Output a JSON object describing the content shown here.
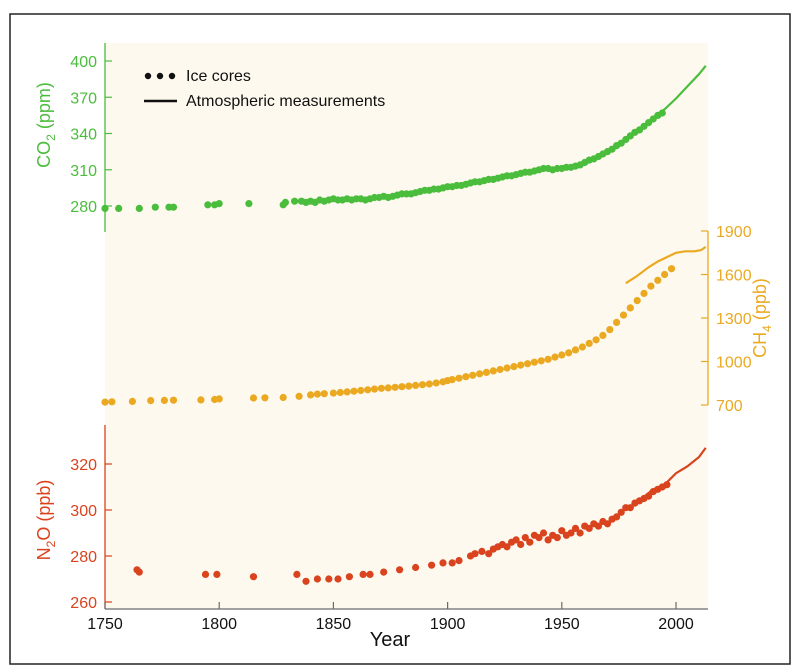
{
  "chart_data": {
    "type": "scatter",
    "xlabel": "Year",
    "xlim": [
      1750,
      2014
    ],
    "x_ticks": [
      "1750",
      "1800",
      "1850",
      "1900",
      "1950",
      "2000"
    ],
    "legend": {
      "placement": "top-left",
      "entries": [
        {
          "label": "Ice cores",
          "marker": "dots"
        },
        {
          "label": "Atmospheric measurements",
          "marker": "line"
        }
      ]
    },
    "panels": [
      {
        "key": "co2",
        "name": "CO2",
        "ylabel_main": "CO",
        "ylabel_sub": "2",
        "ylabel_unit": " (ppm)",
        "axis_side": "left",
        "color": "#4bbd3c",
        "ylim": [
          280,
          400
        ],
        "ticks": [
          "280",
          "310",
          "340",
          "370",
          "400"
        ],
        "ice_cores": [
          [
            1750,
            278
          ],
          [
            1756,
            278
          ],
          [
            1765,
            278
          ],
          [
            1772,
            279
          ],
          [
            1778,
            279
          ],
          [
            1780,
            279
          ],
          [
            1795,
            281
          ],
          [
            1798,
            281
          ],
          [
            1800,
            282
          ],
          [
            1813,
            282
          ],
          [
            1828,
            281
          ],
          [
            1829,
            283
          ],
          [
            1833,
            284
          ],
          [
            1836,
            284
          ],
          [
            1838,
            283
          ],
          [
            1840,
            284
          ],
          [
            1842,
            283
          ],
          [
            1844,
            285
          ],
          [
            1846,
            284
          ],
          [
            1848,
            285
          ],
          [
            1850,
            286
          ],
          [
            1852,
            285
          ],
          [
            1854,
            285
          ],
          [
            1856,
            286
          ],
          [
            1858,
            285
          ],
          [
            1860,
            286
          ],
          [
            1862,
            286
          ],
          [
            1864,
            285
          ],
          [
            1866,
            286
          ],
          [
            1868,
            287
          ],
          [
            1870,
            287
          ],
          [
            1872,
            288
          ],
          [
            1874,
            287
          ],
          [
            1876,
            288
          ],
          [
            1878,
            289
          ],
          [
            1880,
            290
          ],
          [
            1882,
            290
          ],
          [
            1884,
            290
          ],
          [
            1886,
            291
          ],
          [
            1888,
            292
          ],
          [
            1890,
            293
          ],
          [
            1892,
            293
          ],
          [
            1894,
            294
          ],
          [
            1896,
            294
          ],
          [
            1898,
            295
          ],
          [
            1900,
            296
          ],
          [
            1902,
            296
          ],
          [
            1904,
            297
          ],
          [
            1906,
            297
          ],
          [
            1908,
            298
          ],
          [
            1910,
            299
          ],
          [
            1912,
            300
          ],
          [
            1914,
            300
          ],
          [
            1916,
            301
          ],
          [
            1918,
            302
          ],
          [
            1920,
            302
          ],
          [
            1922,
            303
          ],
          [
            1924,
            304
          ],
          [
            1926,
            305
          ],
          [
            1928,
            305
          ],
          [
            1930,
            306
          ],
          [
            1932,
            307
          ],
          [
            1934,
            308
          ],
          [
            1936,
            308
          ],
          [
            1938,
            309
          ],
          [
            1940,
            310
          ],
          [
            1942,
            311
          ],
          [
            1944,
            311
          ],
          [
            1946,
            310
          ],
          [
            1948,
            311
          ],
          [
            1950,
            311
          ],
          [
            1952,
            312
          ],
          [
            1954,
            312
          ],
          [
            1956,
            313
          ],
          [
            1958,
            314
          ],
          [
            1960,
            316
          ],
          [
            1962,
            318
          ],
          [
            1964,
            319
          ],
          [
            1966,
            321
          ],
          [
            1968,
            323
          ],
          [
            1970,
            325
          ],
          [
            1972,
            327
          ],
          [
            1974,
            330
          ],
          [
            1976,
            332
          ],
          [
            1978,
            335
          ],
          [
            1980,
            338
          ],
          [
            1982,
            341
          ],
          [
            1984,
            343
          ],
          [
            1986,
            346
          ],
          [
            1988,
            349
          ],
          [
            1990,
            352
          ],
          [
            1992,
            355
          ],
          [
            1994,
            357
          ]
        ],
        "atmospheric": [
          [
            1958,
            315
          ],
          [
            1965,
            320
          ],
          [
            1970,
            325
          ],
          [
            1975,
            331
          ],
          [
            1980,
            338
          ],
          [
            1985,
            345
          ],
          [
            1990,
            353
          ],
          [
            1995,
            360
          ],
          [
            2000,
            369
          ],
          [
            2005,
            379
          ],
          [
            2010,
            389
          ],
          [
            2013,
            396
          ]
        ]
      },
      {
        "key": "ch4",
        "name": "CH4",
        "ylabel_main": "CH",
        "ylabel_sub": "4",
        "ylabel_unit": " (ppb)",
        "axis_side": "right",
        "color": "#eaa921",
        "ylim": [
          700,
          1900
        ],
        "ticks": [
          "700",
          "1000",
          "1300",
          "1600",
          "1900"
        ],
        "ice_cores": [
          [
            1750,
            720
          ],
          [
            1753,
            722
          ],
          [
            1762,
            725
          ],
          [
            1770,
            730
          ],
          [
            1776,
            732
          ],
          [
            1780,
            733
          ],
          [
            1792,
            735
          ],
          [
            1798,
            738
          ],
          [
            1800,
            742
          ],
          [
            1815,
            748
          ],
          [
            1820,
            750
          ],
          [
            1828,
            752
          ],
          [
            1835,
            760
          ],
          [
            1840,
            770
          ],
          [
            1843,
            775
          ],
          [
            1846,
            778
          ],
          [
            1850,
            782
          ],
          [
            1853,
            786
          ],
          [
            1856,
            790
          ],
          [
            1859,
            795
          ],
          [
            1862,
            800
          ],
          [
            1865,
            805
          ],
          [
            1868,
            810
          ],
          [
            1871,
            815
          ],
          [
            1874,
            818
          ],
          [
            1877,
            822
          ],
          [
            1880,
            826
          ],
          [
            1883,
            830
          ],
          [
            1886,
            835
          ],
          [
            1889,
            840
          ],
          [
            1892,
            845
          ],
          [
            1895,
            852
          ],
          [
            1898,
            860
          ],
          [
            1900,
            868
          ],
          [
            1902,
            875
          ],
          [
            1905,
            885
          ],
          [
            1908,
            895
          ],
          [
            1911,
            905
          ],
          [
            1914,
            915
          ],
          [
            1917,
            925
          ],
          [
            1920,
            935
          ],
          [
            1923,
            945
          ],
          [
            1926,
            955
          ],
          [
            1929,
            965
          ],
          [
            1932,
            975
          ],
          [
            1935,
            985
          ],
          [
            1938,
            995
          ],
          [
            1941,
            1005
          ],
          [
            1944,
            1015
          ],
          [
            1947,
            1030
          ],
          [
            1950,
            1045
          ],
          [
            1953,
            1060
          ],
          [
            1956,
            1080
          ],
          [
            1959,
            1100
          ],
          [
            1962,
            1125
          ],
          [
            1965,
            1150
          ],
          [
            1968,
            1180
          ],
          [
            1971,
            1220
          ],
          [
            1974,
            1270
          ],
          [
            1977,
            1320
          ],
          [
            1980,
            1370
          ],
          [
            1983,
            1420
          ],
          [
            1986,
            1470
          ],
          [
            1989,
            1520
          ],
          [
            1992,
            1560
          ],
          [
            1995,
            1600
          ],
          [
            1998,
            1640
          ]
        ],
        "atmospheric": [
          [
            1978,
            1540
          ],
          [
            1983,
            1590
          ],
          [
            1988,
            1650
          ],
          [
            1992,
            1690
          ],
          [
            1996,
            1720
          ],
          [
            2000,
            1750
          ],
          [
            2004,
            1760
          ],
          [
            2008,
            1760
          ],
          [
            2011,
            1768
          ],
          [
            2013,
            1790
          ]
        ]
      },
      {
        "key": "n2o",
        "name": "N2O",
        "ylabel_main": "N",
        "ylabel_sub": "2",
        "ylabel_unit": "O (ppb)",
        "axis_side": "left",
        "color": "#d9431e",
        "ylim": [
          260,
          330
        ],
        "ticks": [
          "260",
          "280",
          "300",
          "320"
        ],
        "ice_cores": [
          [
            1764,
            274
          ],
          [
            1765,
            273
          ],
          [
            1794,
            272
          ],
          [
            1799,
            272
          ],
          [
            1815,
            271
          ],
          [
            1834,
            272
          ],
          [
            1838,
            269
          ],
          [
            1843,
            270
          ],
          [
            1848,
            270
          ],
          [
            1852,
            270
          ],
          [
            1857,
            271
          ],
          [
            1863,
            272
          ],
          [
            1866,
            272
          ],
          [
            1872,
            273
          ],
          [
            1879,
            274
          ],
          [
            1886,
            275
          ],
          [
            1893,
            276
          ],
          [
            1898,
            277
          ],
          [
            1902,
            277
          ],
          [
            1905,
            278
          ],
          [
            1910,
            280
          ],
          [
            1912,
            281
          ],
          [
            1915,
            282
          ],
          [
            1918,
            281
          ],
          [
            1920,
            283
          ],
          [
            1922,
            284
          ],
          [
            1924,
            285
          ],
          [
            1926,
            284
          ],
          [
            1928,
            286
          ],
          [
            1930,
            287
          ],
          [
            1932,
            285
          ],
          [
            1934,
            288
          ],
          [
            1936,
            286
          ],
          [
            1938,
            289
          ],
          [
            1940,
            288
          ],
          [
            1942,
            290
          ],
          [
            1944,
            287
          ],
          [
            1946,
            289
          ],
          [
            1948,
            288
          ],
          [
            1950,
            291
          ],
          [
            1952,
            289
          ],
          [
            1954,
            290
          ],
          [
            1956,
            292
          ],
          [
            1958,
            290
          ],
          [
            1960,
            293
          ],
          [
            1962,
            292
          ],
          [
            1964,
            294
          ],
          [
            1966,
            293
          ],
          [
            1968,
            295
          ],
          [
            1970,
            294
          ],
          [
            1972,
            296
          ],
          [
            1974,
            297
          ],
          [
            1976,
            299
          ],
          [
            1978,
            301
          ],
          [
            1980,
            301
          ],
          [
            1982,
            303
          ],
          [
            1984,
            304
          ],
          [
            1986,
            305
          ],
          [
            1988,
            306
          ],
          [
            1990,
            308
          ],
          [
            1992,
            309
          ],
          [
            1994,
            310
          ],
          [
            1996,
            311
          ]
        ],
        "atmospheric": [
          [
            1978,
            300
          ],
          [
            1985,
            305
          ],
          [
            1990,
            309
          ],
          [
            1995,
            311
          ],
          [
            2000,
            316
          ],
          [
            2005,
            319
          ],
          [
            2010,
            323
          ],
          [
            2013,
            327
          ]
        ]
      }
    ]
  }
}
